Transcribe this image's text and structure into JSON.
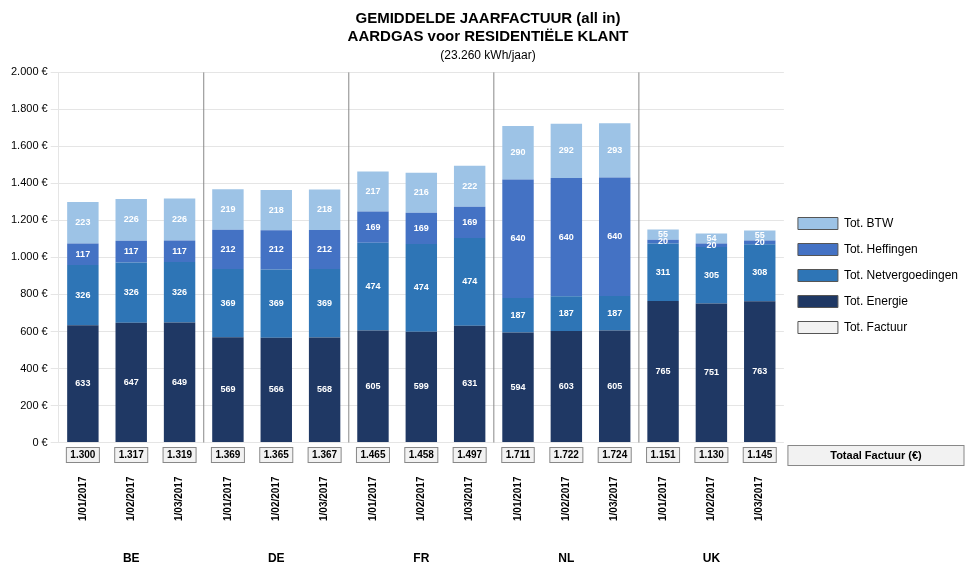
{
  "chart_data": {
    "type": "bar",
    "title": [
      "GEMIDDELDE JAARFACTUUR (all in)",
      "AARDGAS voor RESIDENTIËLE KLANT"
    ],
    "subtitle": "(23.260 kWh/jaar)",
    "categories": [
      "1/01/2017",
      "1/02/2017",
      "1/03/2017",
      "1/01/2017",
      "1/02/2017",
      "1/03/2017",
      "1/01/2017",
      "1/02/2017",
      "1/03/2017",
      "1/01/2017",
      "1/02/2017",
      "1/03/2017",
      "1/01/2017",
      "1/02/2017",
      "1/03/2017"
    ],
    "groups": [
      "BE",
      "DE",
      "FR",
      "NL",
      "UK"
    ],
    "stacked": true,
    "data_labels": true,
    "series": [
      {
        "name": "Tot. Energie",
        "color": "#1F3864",
        "values": [
          633,
          647,
          649,
          569,
          566,
          568,
          605,
          599,
          631,
          594,
          603,
          605,
          765,
          751,
          763
        ]
      },
      {
        "name": "Tot. Netvergoedingen",
        "color": "#2E75B6",
        "values": [
          326,
          326,
          326,
          369,
          369,
          369,
          474,
          474,
          474,
          187,
          187,
          187,
          311,
          305,
          308
        ]
      },
      {
        "name": "Tot. Heffingen",
        "color": "#4472C4",
        "values": [
          117,
          117,
          117,
          212,
          212,
          212,
          169,
          169,
          169,
          640,
          640,
          640,
          20,
          20,
          20
        ]
      },
      {
        "name": "Tot. BTW",
        "color": "#9DC3E6",
        "values": [
          223,
          226,
          226,
          219,
          218,
          218,
          217,
          216,
          222,
          290,
          292,
          293,
          55,
          54,
          55
        ]
      }
    ],
    "totals": {
      "name": "Tot. Factuur",
      "title": "Totaal Factuur (€)",
      "color": "#F2F2F2",
      "values": [
        1300,
        1317,
        1319,
        1369,
        1365,
        1367,
        1465,
        1458,
        1497,
        1711,
        1722,
        1724,
        1151,
        1130,
        1145
      ],
      "value_labels": [
        "1.300",
        "1.317",
        "1.319",
        "1.369",
        "1.365",
        "1.367",
        "1.465",
        "1.458",
        "1.497",
        "1.711",
        "1.722",
        "1.724",
        "1.151",
        "1.130",
        "1.145"
      ]
    },
    "ylim": [
      0,
      2000
    ],
    "yticks": [
      {
        "value": 0,
        "label": "0 €"
      },
      {
        "value": 200,
        "label": "200 €"
      },
      {
        "value": 400,
        "label": "400 €"
      },
      {
        "value": 600,
        "label": "600 €"
      },
      {
        "value": 800,
        "label": "800 €"
      },
      {
        "value": 1000,
        "label": "1.000 €"
      },
      {
        "value": 1200,
        "label": "1.200 €"
      },
      {
        "value": 1400,
        "label": "1.400 €"
      },
      {
        "value": 1600,
        "label": "1.600 €"
      },
      {
        "value": 1800,
        "label": "1.800 €"
      },
      {
        "value": 2000,
        "label": "2.000 €"
      }
    ],
    "grid": true,
    "legend": "right"
  }
}
